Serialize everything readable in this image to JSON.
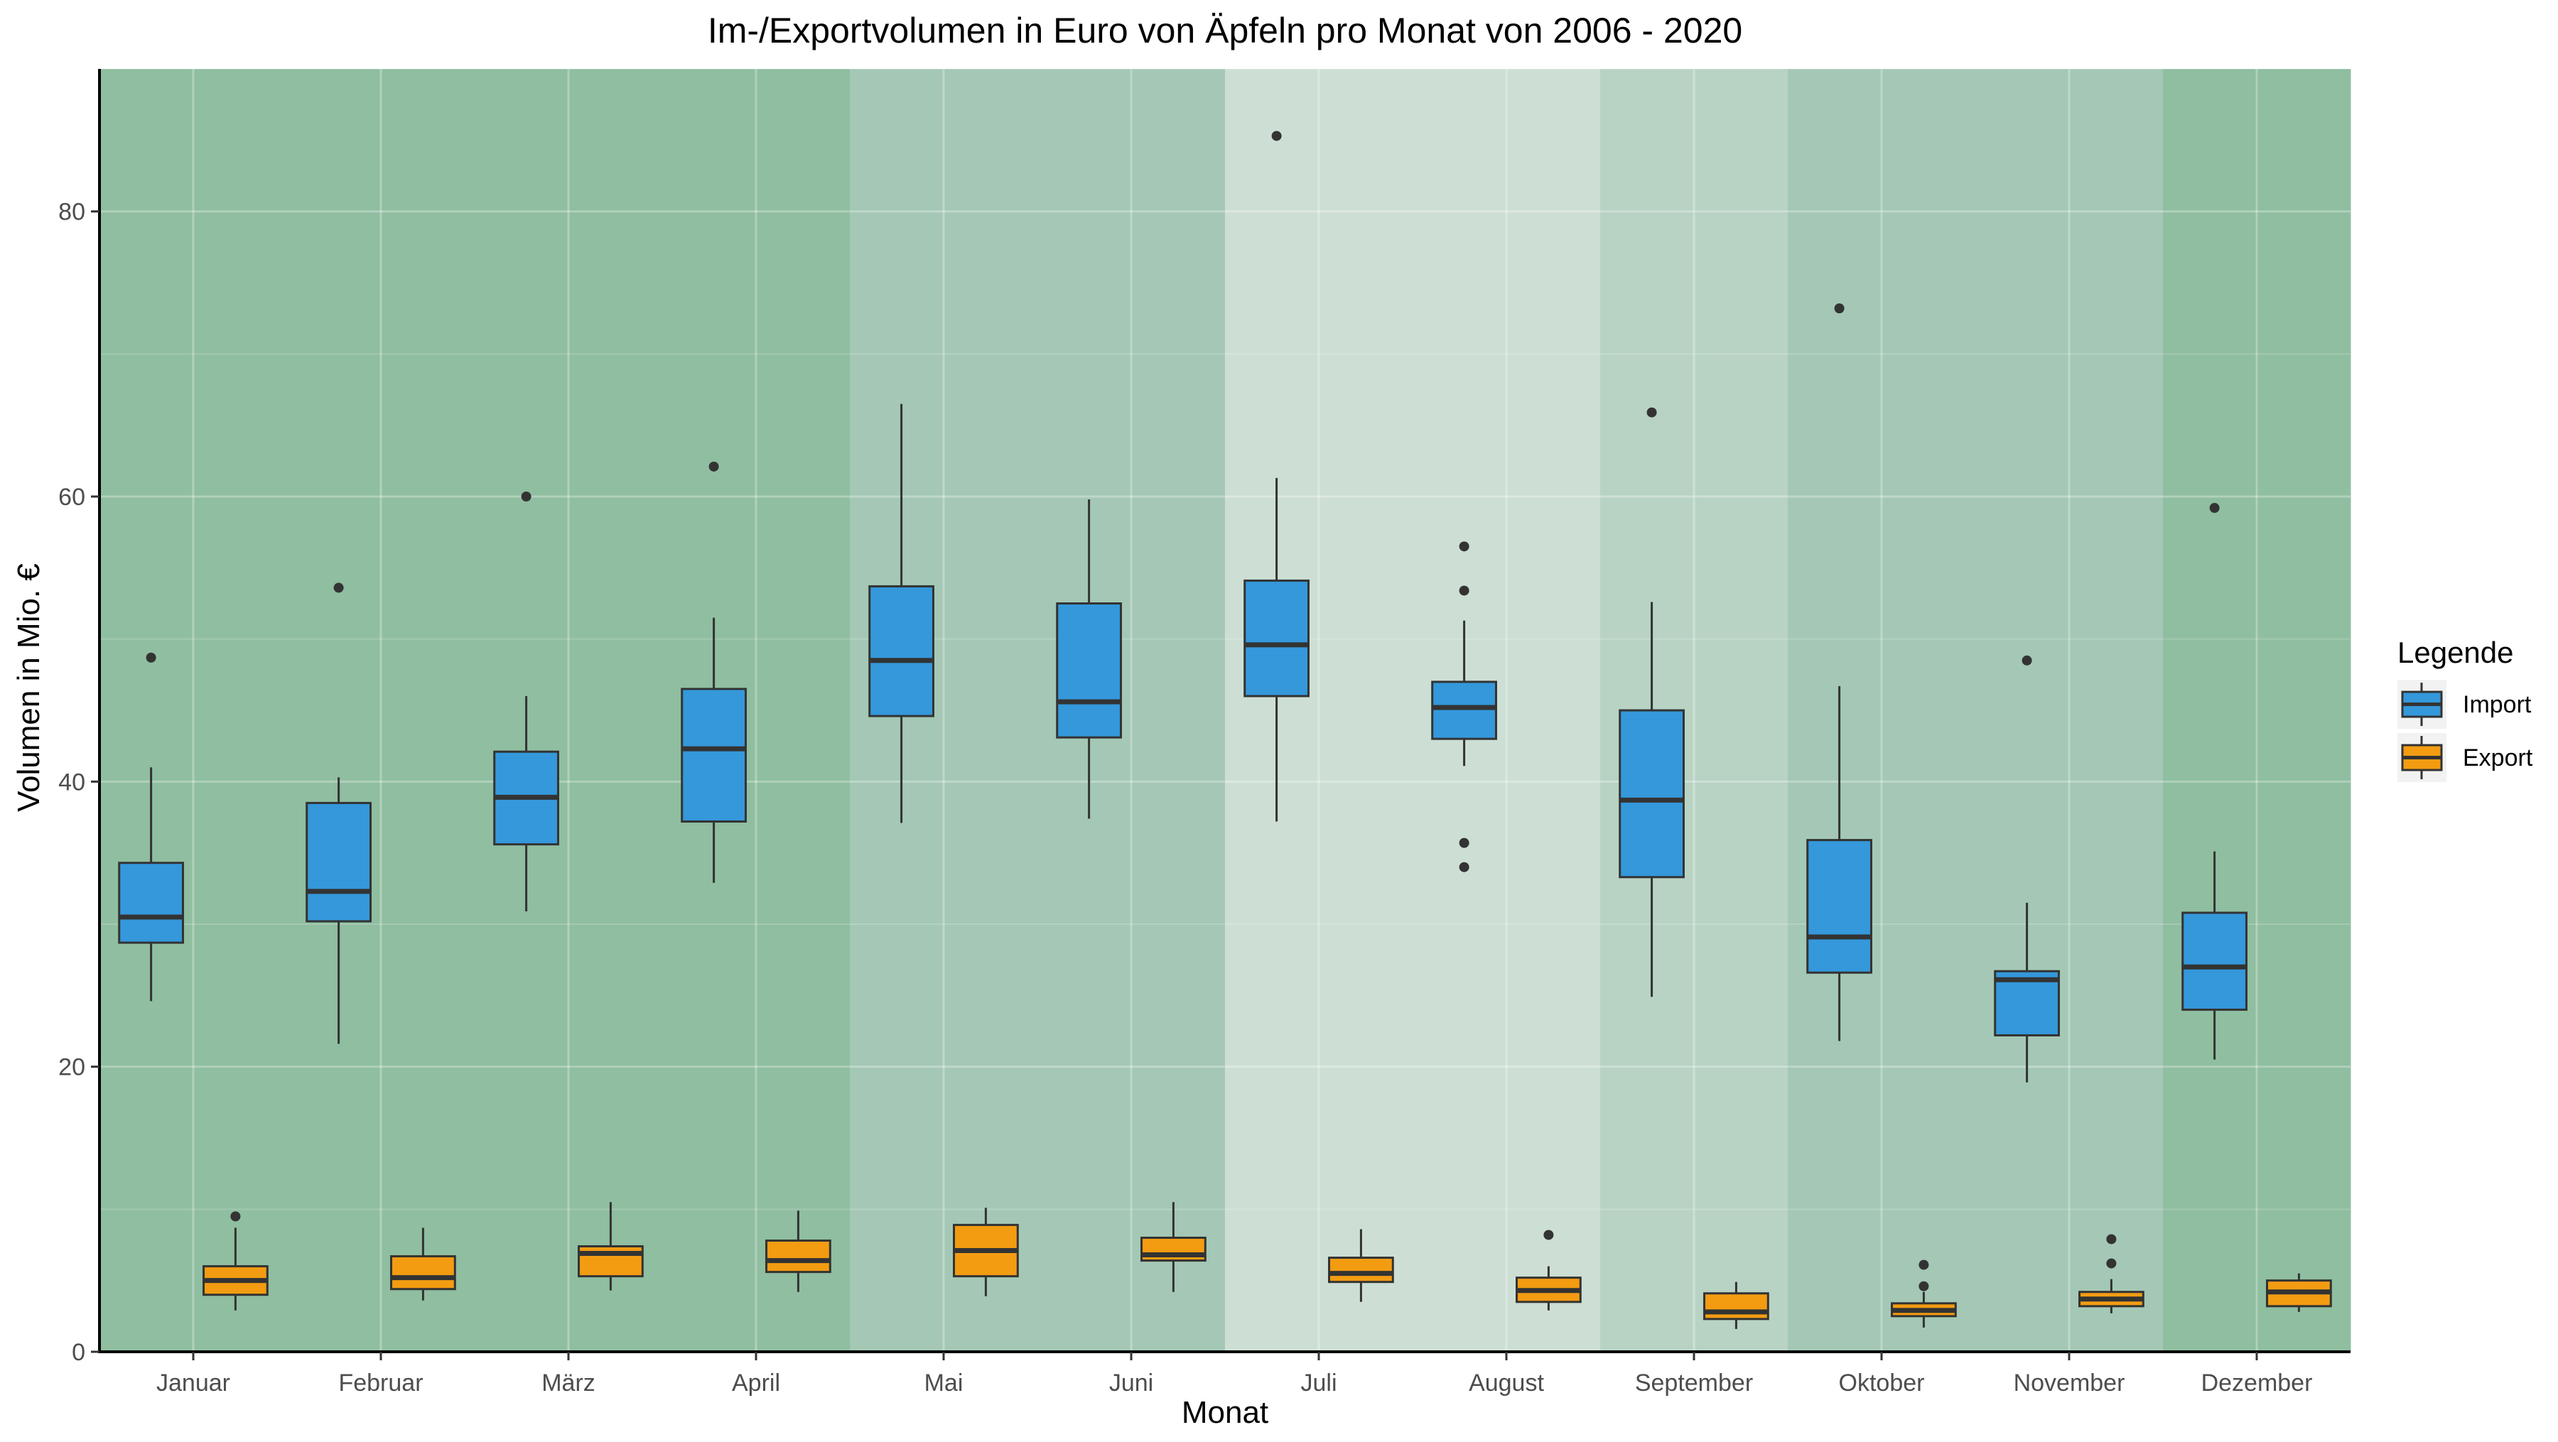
{
  "chart_data": {
    "type": "boxplot",
    "title": "Im-/Exportvolumen in Euro von Äpfeln pro Monat von 2006 - 2020",
    "xlabel": "Monat",
    "ylabel": "Volumen in Mio. €",
    "ylim": [
      0,
      90
    ],
    "yticks": [
      0,
      20,
      40,
      60,
      80
    ],
    "grid": true,
    "legend": {
      "title": "Legende",
      "placement": "right",
      "entries": [
        {
          "name": "Import",
          "color": "#3498db"
        },
        {
          "name": "Export",
          "color": "#f39c12"
        }
      ]
    },
    "categories": [
      "Januar",
      "Februar",
      "März",
      "April",
      "Mai",
      "Juni",
      "Juli",
      "August",
      "September",
      "Oktober",
      "November",
      "Dezember"
    ],
    "band_colors": [
      "#8fbea0",
      "#8fbea0",
      "#8fbea0",
      "#8fbea0",
      "#a4c8b5",
      "#a4c8b5",
      "#cddfd4",
      "#cddfd4",
      "#b8d3c4",
      "#a4c8b5",
      "#a4c8b5",
      "#8fbea0"
    ],
    "series": [
      {
        "name": "Import",
        "color": "#3498db",
        "boxes": [
          {
            "q1": 28.7,
            "median": 30.5,
            "q3": 34.3,
            "whisker_low": 24.6,
            "whisker_high": 41.0,
            "outliers": [
              48.7
            ]
          },
          {
            "q1": 30.2,
            "median": 32.3,
            "q3": 38.5,
            "whisker_low": 21.6,
            "whisker_high": 40.3,
            "outliers": [
              53.6
            ]
          },
          {
            "q1": 35.6,
            "median": 38.9,
            "q3": 42.1,
            "whisker_low": 30.9,
            "whisker_high": 46.0,
            "outliers": [
              60.0
            ]
          },
          {
            "q1": 37.2,
            "median": 42.3,
            "q3": 46.5,
            "whisker_low": 32.9,
            "whisker_high": 51.5,
            "outliers": [
              62.1
            ]
          },
          {
            "q1": 44.6,
            "median": 48.5,
            "q3": 53.7,
            "whisker_low": 37.1,
            "whisker_high": 66.5,
            "outliers": []
          },
          {
            "q1": 43.1,
            "median": 45.6,
            "q3": 52.5,
            "whisker_low": 37.4,
            "whisker_high": 59.8,
            "outliers": []
          },
          {
            "q1": 46.0,
            "median": 49.6,
            "q3": 54.1,
            "whisker_low": 37.2,
            "whisker_high": 61.3,
            "outliers": [
              85.3
            ]
          },
          {
            "q1": 43.0,
            "median": 45.2,
            "q3": 47.0,
            "whisker_low": 41.1,
            "whisker_high": 51.3,
            "outliers": [
              56.5,
              53.4,
              35.7,
              34.0
            ]
          },
          {
            "q1": 33.3,
            "median": 38.7,
            "q3": 45.0,
            "whisker_low": 24.9,
            "whisker_high": 52.6,
            "outliers": [
              65.9
            ]
          },
          {
            "q1": 26.6,
            "median": 29.1,
            "q3": 35.9,
            "whisker_low": 21.8,
            "whisker_high": 46.7,
            "outliers": [
              73.2
            ]
          },
          {
            "q1": 22.2,
            "median": 26.1,
            "q3": 26.7,
            "whisker_low": 18.9,
            "whisker_high": 31.5,
            "outliers": [
              48.5
            ]
          },
          {
            "q1": 24.0,
            "median": 27.0,
            "q3": 30.8,
            "whisker_low": 20.5,
            "whisker_high": 35.1,
            "outliers": [
              59.2
            ]
          }
        ]
      },
      {
        "name": "Export",
        "color": "#f39c12",
        "boxes": [
          {
            "q1": 4.0,
            "median": 5.0,
            "q3": 6.0,
            "whisker_low": 2.9,
            "whisker_high": 8.7,
            "outliers": [
              9.5
            ]
          },
          {
            "q1": 4.4,
            "median": 5.2,
            "q3": 6.7,
            "whisker_low": 3.6,
            "whisker_high": 8.7,
            "outliers": []
          },
          {
            "q1": 5.3,
            "median": 6.9,
            "q3": 7.4,
            "whisker_low": 4.3,
            "whisker_high": 10.5,
            "outliers": []
          },
          {
            "q1": 5.6,
            "median": 6.4,
            "q3": 7.8,
            "whisker_low": 4.2,
            "whisker_high": 9.9,
            "outliers": []
          },
          {
            "q1": 5.3,
            "median": 7.1,
            "q3": 8.9,
            "whisker_low": 3.9,
            "whisker_high": 10.1,
            "outliers": []
          },
          {
            "q1": 6.4,
            "median": 6.8,
            "q3": 8.0,
            "whisker_low": 4.2,
            "whisker_high": 10.5,
            "outliers": []
          },
          {
            "q1": 4.9,
            "median": 5.5,
            "q3": 6.6,
            "whisker_low": 3.5,
            "whisker_high": 8.6,
            "outliers": []
          },
          {
            "q1": 3.5,
            "median": 4.3,
            "q3": 5.2,
            "whisker_low": 2.9,
            "whisker_high": 6.0,
            "outliers": [
              8.2
            ]
          },
          {
            "q1": 2.3,
            "median": 2.8,
            "q3": 4.1,
            "whisker_low": 1.6,
            "whisker_high": 4.9,
            "outliers": []
          },
          {
            "q1": 2.5,
            "median": 2.9,
            "q3": 3.4,
            "whisker_low": 1.7,
            "whisker_high": 4.2,
            "outliers": [
              6.1,
              4.6
            ]
          },
          {
            "q1": 3.2,
            "median": 3.7,
            "q3": 4.2,
            "whisker_low": 2.7,
            "whisker_high": 5.1,
            "outliers": [
              7.9,
              6.2
            ]
          },
          {
            "q1": 3.2,
            "median": 4.2,
            "q3": 5.0,
            "whisker_low": 2.8,
            "whisker_high": 5.5,
            "outliers": []
          }
        ]
      }
    ]
  }
}
